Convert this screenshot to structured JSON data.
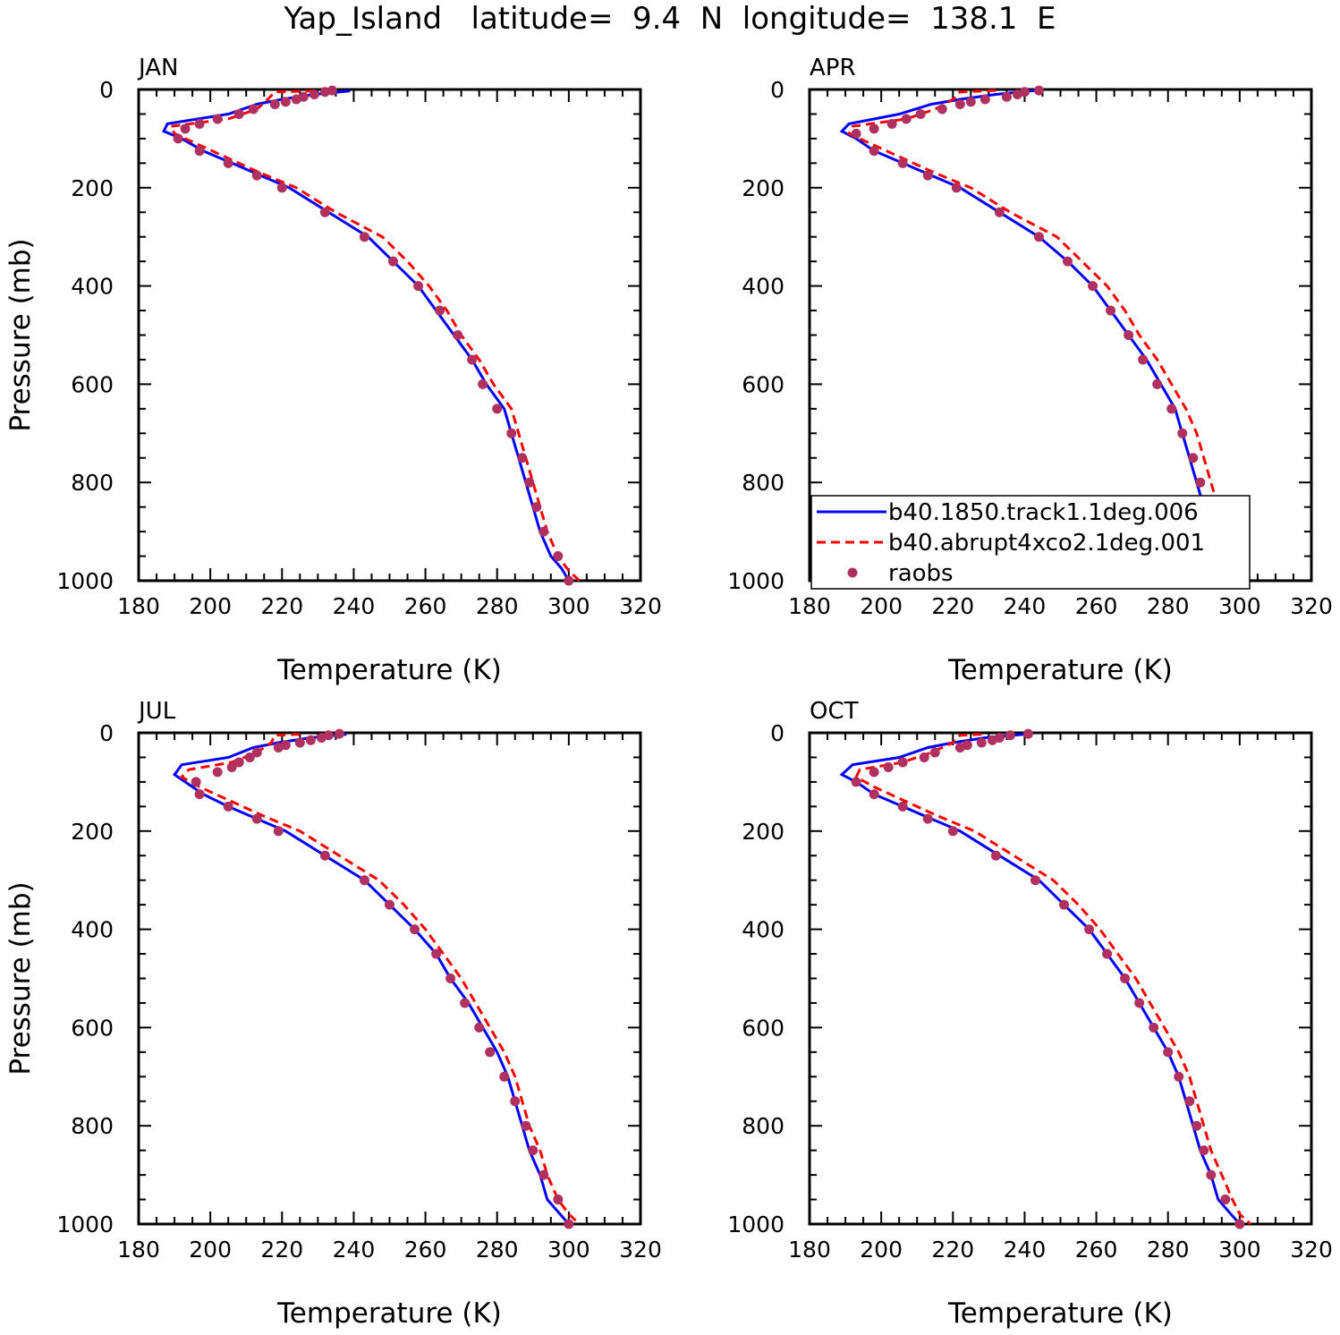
{
  "figure_title": "Yap_Island   latitude=  9.4  N  longitude=  138.1  E",
  "legend": {
    "items": [
      {
        "label": "b40.1850.track1.1deg.006",
        "color": "#0000ff",
        "style": "solid"
      },
      {
        "label": "b40.abrupt4xco2.1deg.001",
        "color": "#ff0000",
        "style": "dashed"
      },
      {
        "label": "raobs",
        "color": "#b03060",
        "style": "marker"
      }
    ],
    "placement": "lower-right of APR panel"
  },
  "chart_data": [
    {
      "type": "line",
      "title": "JAN",
      "xlabel": "Temperature (K)",
      "ylabel": "Pressure (mb)",
      "xlim": [
        180,
        320
      ],
      "ylim": [
        1000,
        0
      ],
      "y_inverted": true,
      "xticks": [
        "180",
        "200",
        "220",
        "240",
        "260",
        "280",
        "300",
        "320"
      ],
      "yticks": [
        "0",
        "200",
        "400",
        "600",
        "800",
        "1000"
      ],
      "series": [
        {
          "name": "b40.1850.track1.1deg.006",
          "color": "#0000ff",
          "style": "solid",
          "x": [
            239,
            229,
            220,
            213,
            205,
            188,
            187,
            192,
            198,
            206,
            214,
            222,
            233,
            244,
            251,
            258,
            263,
            268,
            273,
            277,
            282,
            284,
            286,
            288,
            290,
            292,
            295,
            298,
            300
          ],
          "y": [
            3,
            10,
            20,
            30,
            50,
            70,
            85,
            100,
            125,
            150,
            175,
            200,
            250,
            300,
            350,
            400,
            450,
            500,
            550,
            600,
            650,
            700,
            750,
            800,
            850,
            900,
            950,
            975,
            1000
          ]
        },
        {
          "name": "b40.abrupt4xco2.1deg.001",
          "color": "#ff0000",
          "style": "dashed",
          "x": [
            229,
            218,
            216,
            213,
            205,
            189,
            190,
            196,
            205,
            214,
            224,
            235,
            248,
            255,
            261,
            266,
            270,
            275,
            279,
            284,
            286,
            288,
            290,
            292,
            294,
            297,
            300,
            303
          ],
          "y": [
            3,
            5,
            20,
            40,
            60,
            75,
            90,
            110,
            140,
            170,
            200,
            250,
            300,
            350,
            400,
            450,
            500,
            550,
            600,
            650,
            700,
            750,
            800,
            850,
            900,
            950,
            980,
            1000
          ]
        }
      ],
      "raobs": {
        "color": "#b03060",
        "x": [
          234,
          232,
          229,
          226,
          224,
          221,
          218,
          212,
          208,
          202,
          197,
          193,
          191,
          197,
          205,
          213,
          220,
          232,
          243,
          251,
          258,
          264,
          269,
          273,
          276,
          280,
          284,
          287,
          289,
          291,
          293,
          297,
          300
        ],
        "y": [
          2,
          5,
          10,
          15,
          20,
          25,
          30,
          40,
          50,
          60,
          70,
          80,
          100,
          125,
          150,
          175,
          200,
          250,
          300,
          350,
          400,
          450,
          500,
          550,
          600,
          650,
          700,
          750,
          800,
          850,
          900,
          950,
          1000
        ]
      }
    },
    {
      "type": "line",
      "title": "APR",
      "xlabel": "Temperature (K)",
      "ylabel": "",
      "xlim": [
        180,
        320
      ],
      "ylim": [
        1000,
        0
      ],
      "y_inverted": true,
      "xticks": [
        "180",
        "200",
        "220",
        "240",
        "260",
        "280",
        "300",
        "320"
      ],
      "yticks": [
        "0",
        "200",
        "400",
        "600",
        "800",
        "1000"
      ],
      "series": [
        {
          "name": "b40.1850.track1.1deg.006",
          "color": "#0000ff",
          "style": "solid",
          "x": [
            243,
            232,
            222,
            214,
            205,
            191,
            189,
            193,
            198,
            206,
            214,
            222,
            233,
            244,
            252,
            259,
            264,
            269,
            274,
            278,
            282,
            284,
            286,
            288,
            290,
            292,
            295,
            298,
            301
          ],
          "y": [
            2,
            10,
            20,
            30,
            50,
            70,
            85,
            100,
            125,
            150,
            175,
            200,
            250,
            300,
            350,
            400,
            450,
            500,
            550,
            600,
            650,
            700,
            750,
            800,
            850,
            900,
            950,
            975,
            1000
          ]
        },
        {
          "name": "b40.abrupt4xco2.1deg.001",
          "color": "#ff0000",
          "style": "dashed",
          "x": [
            232,
            222,
            220,
            215,
            207,
            192,
            191,
            197,
            206,
            215,
            225,
            236,
            249,
            256,
            263,
            268,
            272,
            277,
            281,
            285,
            288,
            290,
            292,
            294,
            296,
            298,
            300,
            302
          ],
          "y": [
            2,
            5,
            20,
            40,
            60,
            75,
            90,
            110,
            140,
            170,
            200,
            250,
            300,
            350,
            400,
            450,
            500,
            550,
            600,
            650,
            700,
            750,
            800,
            850,
            900,
            950,
            980,
            1000
          ]
        }
      ],
      "raobs": {
        "color": "#b03060",
        "x": [
          244,
          240,
          238,
          235,
          229,
          225,
          222,
          217,
          211,
          207,
          203,
          198,
          193,
          198,
          206,
          213,
          221,
          233,
          244,
          252,
          259,
          264,
          269,
          273,
          277,
          281,
          284,
          287,
          289,
          291,
          293,
          297,
          300
        ],
        "y": [
          2,
          5,
          10,
          15,
          20,
          25,
          30,
          40,
          50,
          60,
          70,
          80,
          90,
          125,
          150,
          175,
          200,
          250,
          300,
          350,
          400,
          450,
          500,
          550,
          600,
          650,
          700,
          750,
          800,
          850,
          900,
          950,
          1000
        ]
      }
    },
    {
      "type": "line",
      "title": "JUL",
      "xlabel": "Temperature (K)",
      "ylabel": "Pressure (mb)",
      "xlim": [
        180,
        320
      ],
      "ylim": [
        1000,
        0
      ],
      "y_inverted": true,
      "xticks": [
        "180",
        "200",
        "220",
        "240",
        "260",
        "280",
        "300",
        "320"
      ],
      "yticks": [
        "0",
        "200",
        "400",
        "600",
        "800",
        "1000"
      ],
      "series": [
        {
          "name": "b40.1850.track1.1deg.006",
          "color": "#0000ff",
          "style": "solid",
          "x": [
            238,
            228,
            219,
            212,
            205,
            192,
            190,
            193,
            198,
            205,
            213,
            221,
            232,
            243,
            250,
            257,
            263,
            267,
            272,
            276,
            280,
            283,
            285,
            287,
            289,
            292,
            294,
            297,
            300
          ],
          "y": [
            3,
            10,
            20,
            30,
            50,
            65,
            85,
            100,
            125,
            150,
            175,
            200,
            250,
            300,
            350,
            400,
            450,
            500,
            550,
            600,
            650,
            700,
            750,
            800,
            850,
            900,
            950,
            975,
            1000
          ]
        },
        {
          "name": "b40.abrupt4xco2.1deg.001",
          "color": "#ff0000",
          "style": "dashed",
          "x": [
            225,
            218,
            217,
            213,
            206,
            194,
            192,
            197,
            206,
            215,
            225,
            236,
            247,
            254,
            260,
            265,
            270,
            274,
            278,
            282,
            285,
            287,
            289,
            292,
            294,
            297,
            300,
            303
          ],
          "y": [
            3,
            5,
            20,
            40,
            60,
            75,
            90,
            110,
            140,
            170,
            200,
            250,
            300,
            350,
            400,
            450,
            500,
            550,
            600,
            650,
            700,
            750,
            800,
            850,
            900,
            950,
            980,
            1000
          ]
        }
      ],
      "raobs": {
        "color": "#b03060",
        "x": [
          236,
          233,
          231,
          228,
          225,
          221,
          219,
          213,
          211,
          208,
          206,
          202,
          196,
          197,
          205,
          213,
          219,
          232,
          243,
          250,
          257,
          263,
          267,
          271,
          275,
          278,
          282,
          285,
          288,
          290,
          293,
          297,
          300
        ],
        "y": [
          2,
          5,
          10,
          15,
          20,
          25,
          30,
          40,
          50,
          60,
          70,
          80,
          100,
          125,
          150,
          175,
          200,
          250,
          300,
          350,
          400,
          450,
          500,
          550,
          600,
          650,
          700,
          750,
          800,
          850,
          900,
          950,
          1000
        ]
      }
    },
    {
      "type": "line",
      "title": "OCT",
      "xlabel": "Temperature (K)",
      "ylabel": "",
      "xlim": [
        180,
        320
      ],
      "ylim": [
        1000,
        0
      ],
      "y_inverted": true,
      "xticks": [
        "180",
        "200",
        "220",
        "240",
        "260",
        "280",
        "300",
        "320"
      ],
      "yticks": [
        "0",
        "200",
        "400",
        "600",
        "800",
        "1000"
      ],
      "series": [
        {
          "name": "b40.1850.track1.1deg.006",
          "color": "#0000ff",
          "style": "solid",
          "x": [
            240,
            229,
            220,
            213,
            205,
            192,
            189,
            193,
            198,
            206,
            214,
            222,
            233,
            244,
            251,
            258,
            263,
            268,
            272,
            276,
            280,
            283,
            285,
            287,
            289,
            292,
            294,
            297,
            300
          ],
          "y": [
            3,
            10,
            20,
            30,
            50,
            65,
            85,
            100,
            125,
            150,
            175,
            200,
            250,
            300,
            350,
            400,
            450,
            500,
            550,
            600,
            650,
            700,
            750,
            800,
            850,
            900,
            950,
            975,
            1000
          ]
        },
        {
          "name": "b40.abrupt4xco2.1deg.001",
          "color": "#ff0000",
          "style": "dashed",
          "x": [
            228,
            222,
            220,
            214,
            206,
            194,
            193,
            198,
            207,
            216,
            226,
            237,
            248,
            255,
            261,
            266,
            271,
            275,
            279,
            283,
            286,
            288,
            290,
            292,
            295,
            298,
            300,
            303
          ],
          "y": [
            3,
            5,
            20,
            40,
            60,
            75,
            90,
            110,
            140,
            170,
            200,
            250,
            300,
            350,
            400,
            450,
            500,
            550,
            600,
            650,
            700,
            750,
            800,
            850,
            900,
            950,
            980,
            1000
          ]
        }
      ],
      "raobs": {
        "color": "#b03060",
        "x": [
          241,
          236,
          233,
          231,
          228,
          224,
          222,
          215,
          212,
          206,
          202,
          198,
          193,
          198,
          206,
          213,
          220,
          232,
          243,
          251,
          258,
          263,
          268,
          272,
          276,
          280,
          283,
          286,
          288,
          290,
          292,
          296,
          300
        ],
        "y": [
          2,
          5,
          10,
          15,
          20,
          25,
          30,
          40,
          50,
          60,
          70,
          80,
          100,
          125,
          150,
          175,
          200,
          250,
          300,
          350,
          400,
          450,
          500,
          550,
          600,
          650,
          700,
          750,
          800,
          850,
          900,
          950,
          1000
        ]
      }
    }
  ]
}
